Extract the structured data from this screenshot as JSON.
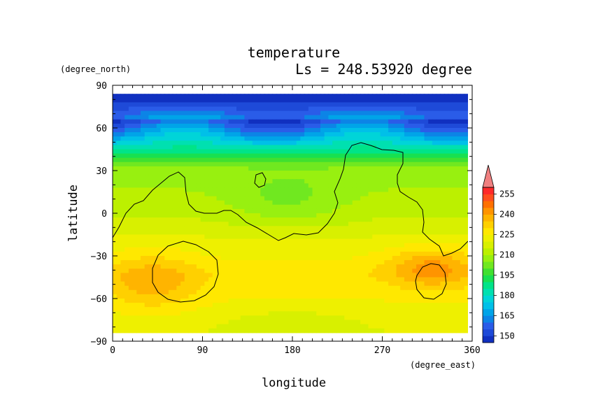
{
  "chart_data": {
    "type": "heatmap",
    "title": "temperature",
    "subtitle": "Ls = 248.53920 degree",
    "xlabel": "longitude",
    "ylabel": "latitude",
    "xunit": "(degree_east)",
    "yunit": "(degree_north)",
    "xlim": [
      0,
      360
    ],
    "ylim": [
      -90,
      90
    ],
    "xticks": [
      "0",
      "90",
      "180",
      "270",
      "360"
    ],
    "yticks": [
      "90",
      "60",
      "30",
      "0",
      "−30",
      "−60",
      "−90"
    ],
    "colorbar": {
      "levels": [
        145,
        150,
        155,
        160,
        165,
        170,
        175,
        180,
        185,
        190,
        195,
        200,
        205,
        210,
        215,
        220,
        225,
        230,
        235,
        240,
        245,
        250,
        255,
        260
      ],
      "colors": [
        "#1030c0",
        "#1e4ad8",
        "#2a5ce8",
        "#0c84e6",
        "#00a4e8",
        "#00c0e8",
        "#00d4d8",
        "#00e0b0",
        "#00e488",
        "#18e050",
        "#40e030",
        "#70e820",
        "#98f010",
        "#bcf000",
        "#d8f000",
        "#eef000",
        "#ffe800",
        "#ffd000",
        "#ffb400",
        "#ff9400",
        "#ff7000",
        "#ff4e1e",
        "#ff2a2a",
        "#f08080"
      ],
      "labels": [
        "255",
        "240",
        "225",
        "210",
        "195",
        "180",
        "165",
        "150"
      ],
      "overflow_color": "#f08080"
    },
    "grid": false,
    "contour_overlay": "topography"
  }
}
